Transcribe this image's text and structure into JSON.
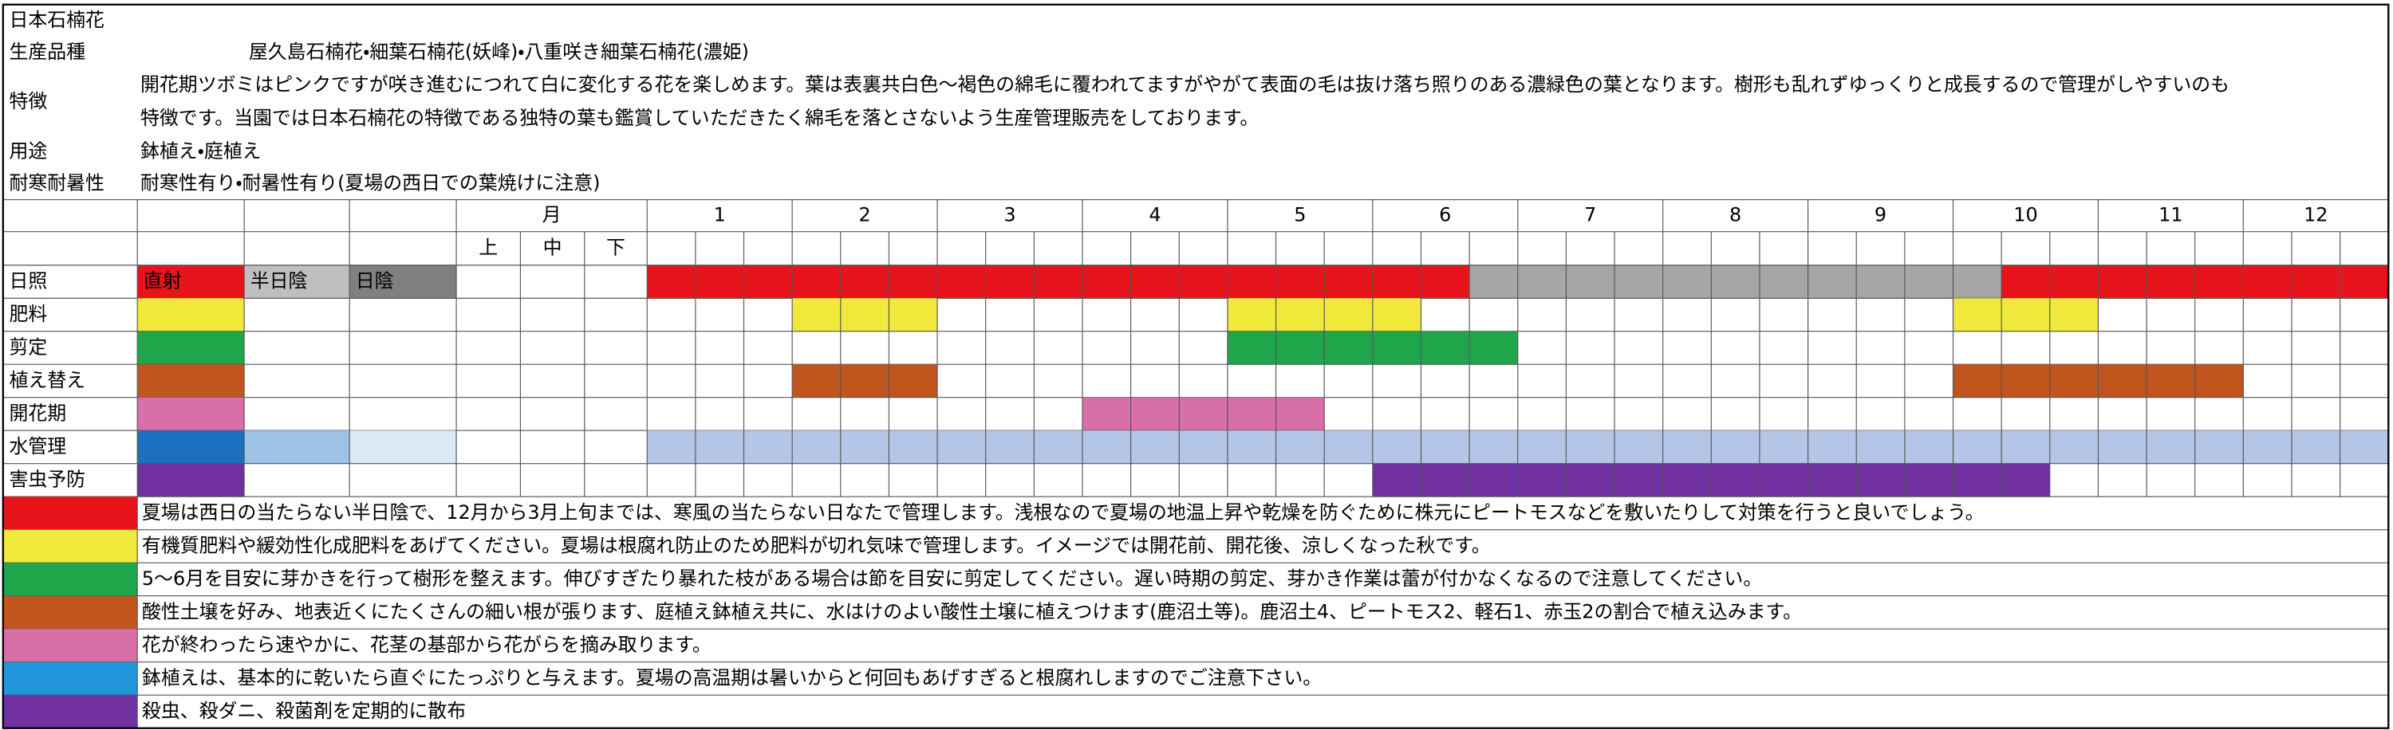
{
  "title": "日本石楠花",
  "info": [
    {
      "label": "生産品種",
      "text": "屋久島石楠花・細葉石楠花(妖峰)・八重咲き細葉石楠花(濃姫)"
    },
    {
      "label": "特徴",
      "lines": [
        "開花期ツボミはピンクですが咲き進むにつれて白に変化する花を楽しめます。葉は表裏共白色～褐色の綿毛に覆われてますがやがて表面の毛は抜け落ち照りのある濃緑色の葉となります。樹形も乱れずゆっくりと成長するので管理がしやすいのも",
        "特徴です。当園では日本石楠花の特徴である独特の葉も鑑賞していただきたく綿毛を落とさないよう生産管理販売をしております。"
      ]
    },
    {
      "label": "用途",
      "text": "鉢植え・庭植え"
    },
    {
      "label": "耐寒耐暑性",
      "text": "耐寒性有り・耐暑性有り(夏場の西日での葉焼けに注意)"
    }
  ],
  "calendar": {
    "month_header": "月",
    "thirds": [
      "上",
      "中",
      "下"
    ],
    "months": [
      1,
      2,
      3,
      4,
      5,
      6,
      7,
      8,
      9,
      10,
      11,
      12
    ],
    "rows": [
      {
        "label": "日照",
        "legend": [
          {
            "text": "直射",
            "color": "#e8141b"
          },
          {
            "text": "半日陰",
            "color": "#bfbfbf"
          },
          {
            "text": "日陰",
            "color": "#808080"
          }
        ],
        "spans": [
          {
            "start": 0,
            "end": 16,
            "color": "#e8141b"
          },
          {
            "start": 17,
            "end": 27,
            "color": "#a6a6a6"
          },
          {
            "start": 28,
            "end": 35,
            "color": "#e8141b"
          }
        ]
      },
      {
        "label": "肥料",
        "legend": [
          {
            "color": "#f0e83a"
          }
        ],
        "spans": [
          {
            "start": 3,
            "end": 5,
            "color": "#f0e83a"
          },
          {
            "start": 12,
            "end": 15,
            "color": "#f0e83a"
          },
          {
            "start": 27,
            "end": 29,
            "color": "#f0e83a"
          }
        ]
      },
      {
        "label": "剪定",
        "legend": [
          {
            "color": "#1fa64a"
          }
        ],
        "spans": [
          {
            "start": 12,
            "end": 17,
            "color": "#1fa64a"
          }
        ]
      },
      {
        "label": "植え替え",
        "legend": [
          {
            "color": "#c0561d"
          }
        ],
        "spans": [
          {
            "start": 3,
            "end": 5,
            "color": "#c0561d"
          },
          {
            "start": 27,
            "end": 32,
            "color": "#c0561d"
          }
        ]
      },
      {
        "label": "開花期",
        "legend": [
          {
            "color": "#d96fa8"
          }
        ],
        "spans": [
          {
            "start": 9,
            "end": 13,
            "color": "#d96fa8"
          }
        ]
      },
      {
        "label": "水管理",
        "legend": [
          {
            "color": "#1a6fbf"
          },
          {
            "color": "#9dc3e6"
          },
          {
            "color": "#dbe8f5"
          }
        ],
        "spans": [
          {
            "start": 0,
            "end": 35,
            "color": "#b4c6e7"
          }
        ]
      },
      {
        "label": "害虫予防",
        "legend": [
          {
            "color": "#7030a0"
          }
        ],
        "spans": [
          {
            "start": 15,
            "end": 28,
            "color": "#7030a0"
          }
        ]
      }
    ]
  },
  "notes": [
    {
      "color": "#e8141b",
      "text": "夏場は西日の当たらない半日陰で、12月から3月上旬までは、寒風の当たらない日なたで管理します。浅根なので夏場の地温上昇や乾燥を防ぐために株元にピートモスなどを敷いたりして対策を行うと良いでしょう。"
    },
    {
      "color": "#f0e83a",
      "text": "有機質肥料や緩効性化成肥料をあげてください。夏場は根腐れ防止のため肥料が切れ気味で管理します。イメージでは開花前、開花後、涼しくなった秋です。"
    },
    {
      "color": "#1fa64a",
      "text": "5～6月を目安に芽かきを行って樹形を整えます。伸びすぎたり暴れた枝がある場合は節を目安に剪定してください。遅い時期の剪定、芽かき作業は蕾が付かなくなるので注意してください。"
    },
    {
      "color": "#c0561d",
      "text": "酸性土壌を好み、地表近くにたくさんの細い根が張ります、庭植え鉢植え共に、水はけのよい酸性土壌に植えつけます(鹿沼土等)。鹿沼土4、ピートモス2、軽石1、赤玉2の割合で植え込みます。"
    },
    {
      "color": "#d96fa8",
      "text": "花が終わったら速やかに、花茎の基部から花がらを摘み取ります。"
    },
    {
      "color": "#2196dc",
      "text": "鉢植えは、基本的に乾いたら直ぐにたっぷりと与えます。夏場の高温期は暑いからと何回もあげすぎると根腐れしますのでご注意下さい。"
    },
    {
      "color": "#7030a0",
      "text": "殺虫、殺ダニ、殺菌剤を定期的に散布"
    }
  ]
}
